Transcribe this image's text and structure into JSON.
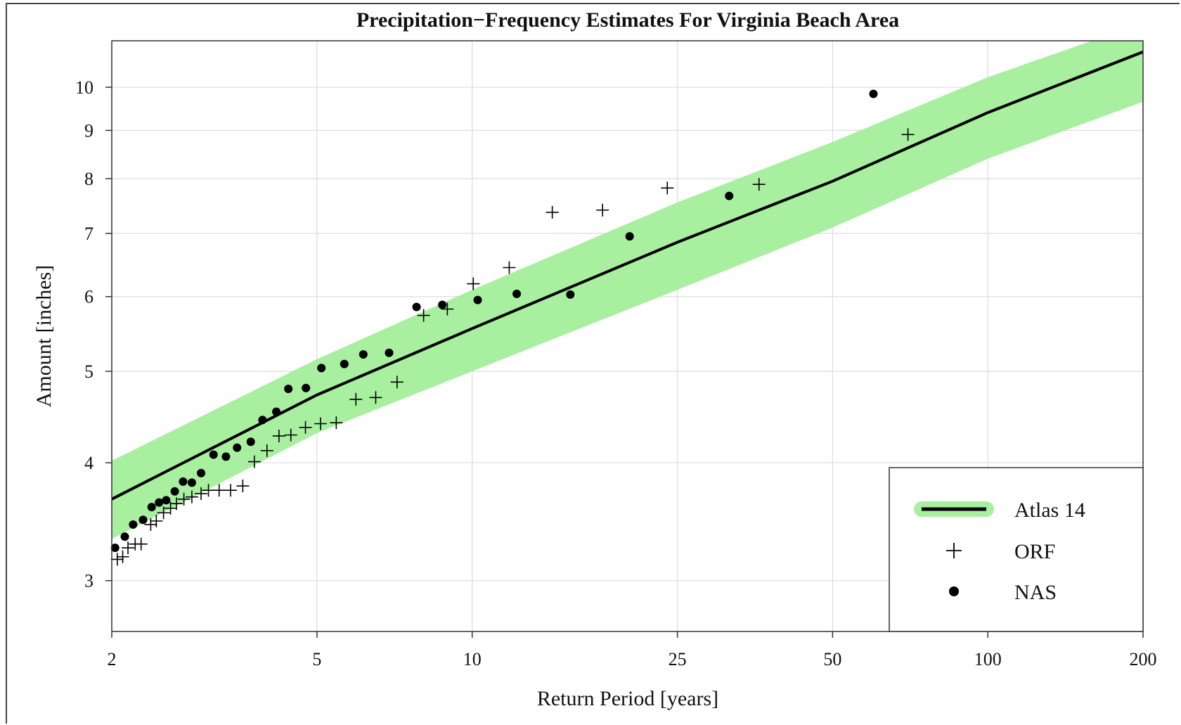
{
  "chart_data": {
    "type": "scatter",
    "title": "Precipitation−Frequency Estimates For Virginia Beach Area",
    "xlabel": "Return Period [years]",
    "ylabel": "Amount [inches]",
    "x_scale": "log",
    "y_scale": "log",
    "xlim": [
      2,
      200
    ],
    "ylim": [
      2.65,
      11.2
    ],
    "x_ticks": [
      2,
      5,
      10,
      25,
      50,
      100,
      200
    ],
    "x_tick_labels": [
      "2",
      "5",
      "10",
      "25",
      "50",
      "100",
      "200"
    ],
    "y_ticks": [
      3,
      4,
      5,
      6,
      7,
      8,
      9,
      10
    ],
    "y_tick_labels": [
      "3",
      "4",
      "5",
      "6",
      "7",
      "8",
      "9",
      "10"
    ],
    "grid": true,
    "legend_position": "bottom-right",
    "series": [
      {
        "name": "Atlas 14",
        "kind": "line-with-band",
        "color": "#000000",
        "band_color": "#a8f0a0",
        "x": [
          2,
          5,
          10,
          25,
          50,
          100,
          200
        ],
        "y": [
          3.66,
          4.72,
          5.55,
          6.85,
          7.95,
          9.4,
          10.9
        ],
        "band_lower": [
          3.32,
          4.3,
          5.0,
          6.1,
          7.1,
          8.4,
          9.65
        ],
        "band_upper": [
          4.02,
          5.15,
          6.1,
          7.55,
          8.75,
          10.25,
          11.7
        ]
      },
      {
        "name": "ORF",
        "kind": "plus",
        "color": "#000000",
        "x": [
          2.05,
          2.1,
          2.15,
          2.22,
          2.28,
          2.38,
          2.44,
          2.52,
          2.6,
          2.67,
          2.76,
          2.86,
          2.98,
          3.08,
          3.23,
          3.4,
          3.59,
          3.78,
          4.0,
          4.22,
          4.45,
          4.75,
          5.08,
          5.45,
          5.95,
          6.5,
          7.15,
          8.05,
          8.95,
          10.05,
          11.8,
          14.3,
          17.9,
          23.9,
          36.0,
          70.0
        ],
        "y": [
          3.16,
          3.18,
          3.25,
          3.28,
          3.28,
          3.44,
          3.47,
          3.54,
          3.58,
          3.62,
          3.66,
          3.68,
          3.71,
          3.74,
          3.74,
          3.74,
          3.78,
          4.01,
          4.12,
          4.27,
          4.28,
          4.36,
          4.4,
          4.41,
          4.67,
          4.69,
          4.87,
          5.73,
          5.82,
          6.19,
          6.44,
          7.37,
          7.41,
          7.82,
          7.89,
          8.91
        ]
      },
      {
        "name": "NAS",
        "kind": "dot",
        "color": "#000000",
        "x": [
          2.03,
          2.12,
          2.2,
          2.3,
          2.39,
          2.47,
          2.55,
          2.65,
          2.75,
          2.86,
          2.98,
          3.15,
          3.33,
          3.5,
          3.72,
          3.92,
          4.17,
          4.4,
          4.76,
          5.1,
          5.65,
          6.15,
          6.9,
          7.8,
          8.75,
          10.25,
          12.2,
          15.5,
          20.2,
          31.5,
          60.0
        ],
        "y": [
          3.25,
          3.34,
          3.44,
          3.48,
          3.59,
          3.63,
          3.65,
          3.73,
          3.82,
          3.81,
          3.9,
          4.08,
          4.06,
          4.15,
          4.21,
          4.44,
          4.53,
          4.79,
          4.8,
          5.04,
          5.09,
          5.21,
          5.23,
          5.85,
          5.88,
          5.95,
          6.04,
          6.03,
          6.95,
          7.67,
          9.84
        ]
      }
    ]
  }
}
